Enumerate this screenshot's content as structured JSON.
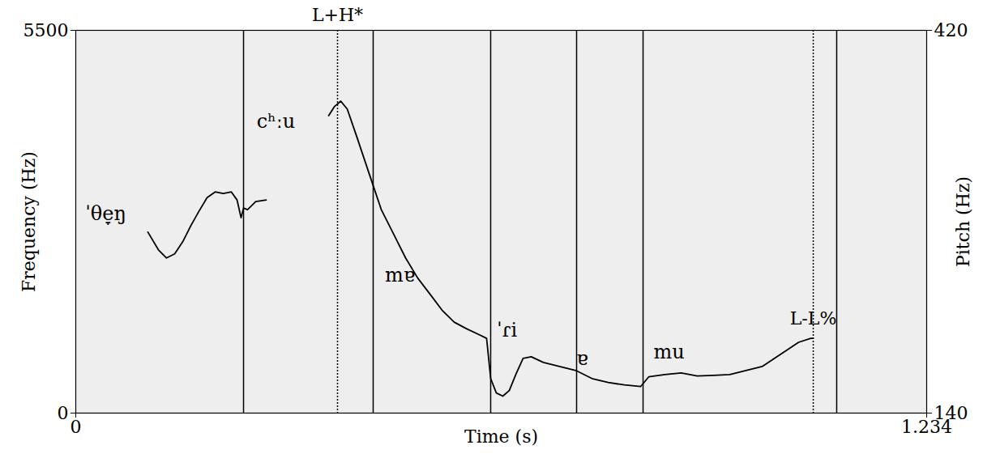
{
  "chart_data": {
    "type": "line",
    "x_label": "Time (s)",
    "y_label": "Frequency (Hz)",
    "y2_label": "Pitch (Hz)",
    "xlim": [
      0,
      1.234
    ],
    "xticks": [
      0,
      1.234
    ],
    "ylim": [
      0,
      5500
    ],
    "yticks": [
      0,
      5500
    ],
    "y2lim": [
      140,
      420
    ],
    "y2ticks": [
      140,
      420
    ],
    "x": [
      0.1046,
      0.1199,
      0.1316,
      0.1434,
      0.1551,
      0.1669,
      0.1786,
      0.1904,
      0.2021,
      0.2139,
      0.2256,
      0.2339,
      0.2397,
      0.2433,
      0.2491,
      0.2609,
      0.2762,
      0.32,
      0.3667,
      0.3749,
      0.3843,
      0.3937,
      0.4078,
      0.4254,
      0.4431,
      0.4607,
      0.4783,
      0.4959,
      0.5136,
      0.5312,
      0.5488,
      0.5664,
      0.5841,
      0.5958,
      0.6017,
      0.6099,
      0.6193,
      0.6287,
      0.6381,
      0.6487,
      0.6605,
      0.6781,
      0.7016,
      0.7251,
      0.7486,
      0.7721,
      0.7956,
      0.8191,
      0.8309,
      0.8544,
      0.8779,
      0.9014,
      0.9249,
      0.9484,
      0.9719,
      0.9954,
      1.013,
      1.0307,
      1.0483,
      1.0659,
      1.0695
    ],
    "series": [
      {
        "axis": "y2",
        "color": "#000000",
        "values": [
          272.4,
          259.4,
          253.5,
          256.5,
          265.3,
          277.1,
          287.6,
          297.6,
          301.8,
          300.6,
          301.8,
          295.9,
          282.9,
          290,
          288.8,
          294.7,
          295.9,
          null,
          357.6,
          364.1,
          368.2,
          362.4,
          341.8,
          315.3,
          288.8,
          271.2,
          253.5,
          238.8,
          227.1,
          215.3,
          206.5,
          201.8,
          197.6,
          194.7,
          165.3,
          154.7,
          152.4,
          156.5,
          168.2,
          180,
          181.2,
          177.1,
          174.1,
          171.2,
          165.3,
          162.4,
          160.6,
          159.4,
          166.5,
          168.2,
          169.4,
          167.1,
          167.6,
          168.2,
          171.2,
          174.1,
          180,
          185.9,
          191.8,
          194.7,
          194.7
        ]
      }
    ],
    "boundaries": [
      0.2433,
      0.4313,
      0.6017,
      0.7263,
      0.8227,
      1.1035
    ],
    "tones": [
      {
        "label": "L+H*",
        "x": 0.3796,
        "y": 431
      },
      {
        "label": "L-L%",
        "x": 1.0695,
        "y": 209
      }
    ],
    "segments": [
      {
        "label": "ˈθe̞ŋ",
        "x": 0.0435,
        "y": 286
      },
      {
        "label": "cʰːu",
        "x": 0.2903,
        "y": 353.5
      },
      {
        "label": "mɐ",
        "x": 0.4701,
        "y": 240.6
      },
      {
        "label": "ˈɾi",
        "x": 0.6252,
        "y": 200.6
      },
      {
        "label": "ɐ",
        "x": 0.7345,
        "y": 180
      },
      {
        "label": "mu",
        "x": 0.8603,
        "y": 184.7
      }
    ]
  }
}
